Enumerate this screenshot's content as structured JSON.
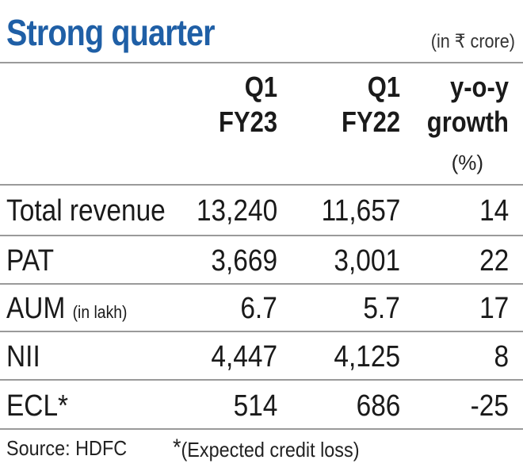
{
  "title": "Strong quarter",
  "unit_note": "(in ₹ crore)",
  "columns": [
    {
      "line1": "Q1",
      "line2": "FY23"
    },
    {
      "line1": "Q1",
      "line2": "FY22"
    },
    {
      "line1": "y-o-y",
      "line2": "growth",
      "line3": "(%)"
    }
  ],
  "rows": [
    {
      "label": "Total revenue",
      "sub": "",
      "q1fy23": "13,240",
      "q1fy22": "11,657",
      "growth": "14"
    },
    {
      "label": "PAT",
      "sub": "",
      "q1fy23": "3,669",
      "q1fy22": "3,001",
      "growth": "22"
    },
    {
      "label": "AUM",
      "sub": "(in lakh)",
      "q1fy23": "6.7",
      "q1fy22": "5.7",
      "growth": "17"
    },
    {
      "label": "NII",
      "sub": "",
      "q1fy23": "4,447",
      "q1fy22": "4,125",
      "growth": "8"
    },
    {
      "label": "ECL*",
      "sub": "",
      "q1fy23": "514",
      "q1fy22": "686",
      "growth": "-25"
    }
  ],
  "footer": {
    "source": "Source: HDFC",
    "asterisk": "*",
    "note": "(Expected credit loss)"
  },
  "chart_data": {
    "type": "table",
    "title": "Strong quarter",
    "unit": "(in ₹ crore)",
    "columns": [
      "Q1 FY23",
      "Q1 FY22",
      "y-o-y growth (%)"
    ],
    "rows": [
      {
        "label": "Total revenue",
        "values": [
          13240,
          11657,
          14
        ]
      },
      {
        "label": "PAT",
        "values": [
          3669,
          3001,
          22
        ]
      },
      {
        "label": "AUM (in lakh)",
        "values": [
          6.7,
          5.7,
          17
        ]
      },
      {
        "label": "NII",
        "values": [
          4447,
          4125,
          8
        ]
      },
      {
        "label": "ECL*",
        "values": [
          514,
          686,
          -25
        ]
      }
    ]
  },
  "colors": {
    "title": "#1f5fa6",
    "rule": "#9a9a9a"
  }
}
